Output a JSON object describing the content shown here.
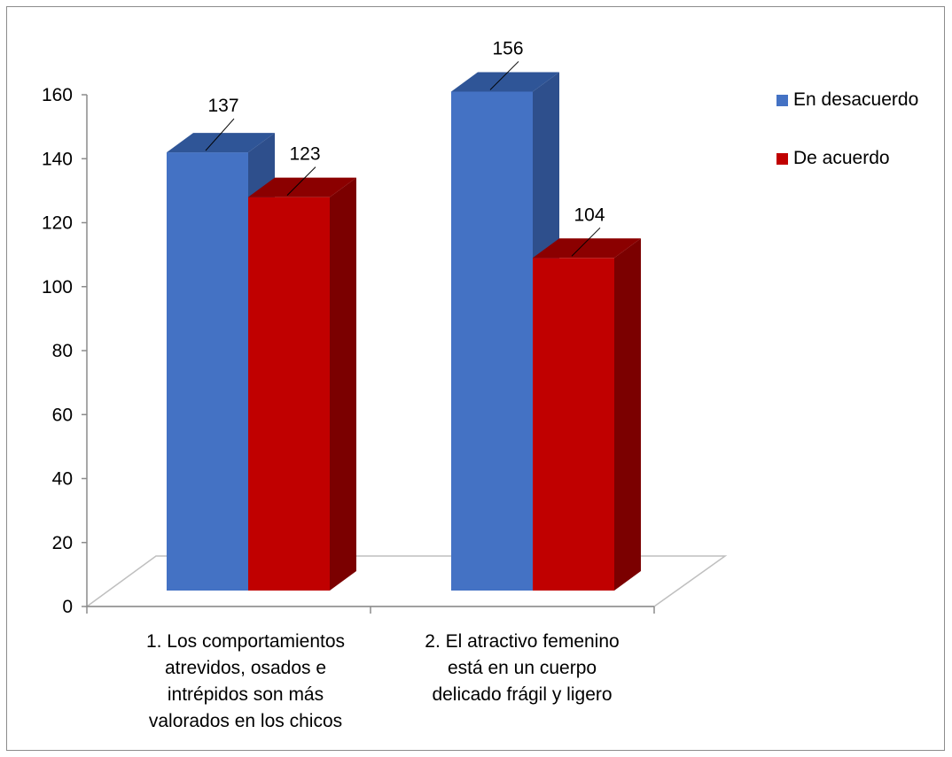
{
  "chart_data": {
    "type": "bar",
    "categories": [
      "1. Los comportamientos atrevidos, osados e intrépidos son más valorados en los chicos",
      "2. El atractivo femenino está en un cuerpo delicado frágil y ligero"
    ],
    "category_lines": [
      [
        "1. Los comportamientos",
        "atrevidos, osados e",
        "intrépidos son más",
        "valorados en los chicos"
      ],
      [
        "2. El atractivo femenino",
        "está en un cuerpo",
        "delicado frágil y ligero"
      ]
    ],
    "series": [
      {
        "name": "En desacuerdo",
        "values": [
          137,
          156
        ],
        "color": "#4472C4",
        "side_color": "#2E4F8C",
        "top_color": "#2F5597"
      },
      {
        "name": "De acuerdo",
        "values": [
          123,
          104
        ],
        "color": "#C00000",
        "side_color": "#7B0000",
        "top_color": "#8B0000"
      }
    ],
    "ylim": [
      0,
      160
    ],
    "yticks": [
      0,
      20,
      40,
      60,
      80,
      100,
      120,
      140,
      160
    ],
    "data_labels": true,
    "legend": "right",
    "grid": false,
    "style": "3d-clustered-column"
  }
}
